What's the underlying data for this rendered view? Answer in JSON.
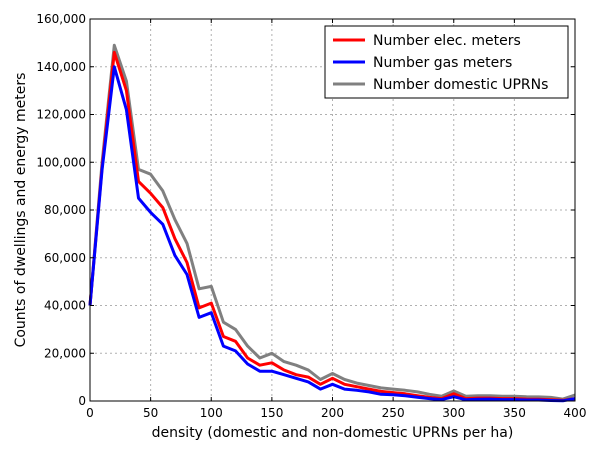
{
  "chart_data": {
    "type": "line",
    "title": "",
    "xlabel": "density (domestic and non-domestic UPRNs per ha)",
    "ylabel": "Counts of dwellings and energy meters",
    "xlim": [
      0,
      400
    ],
    "ylim": [
      0,
      160000
    ],
    "xticks": [
      0,
      50,
      100,
      150,
      200,
      250,
      300,
      350,
      400
    ],
    "yticks": [
      0,
      20000,
      40000,
      60000,
      80000,
      100000,
      120000,
      140000,
      160000
    ],
    "xtick_labels": [
      "0",
      "50",
      "100",
      "150",
      "200",
      "250",
      "300",
      "350",
      "400"
    ],
    "ytick_labels": [
      "0",
      "20,000",
      "40,000",
      "60,000",
      "80,000",
      "100,000",
      "120,000",
      "140,000",
      "160,000"
    ],
    "grid": true,
    "legend_position": "top-right",
    "x": [
      0,
      10,
      20,
      30,
      40,
      50,
      60,
      70,
      80,
      90,
      100,
      110,
      120,
      130,
      140,
      150,
      160,
      170,
      180,
      190,
      200,
      210,
      220,
      230,
      240,
      250,
      260,
      270,
      280,
      290,
      300,
      310,
      320,
      330,
      340,
      350,
      360,
      370,
      380,
      390,
      400
    ],
    "series": [
      {
        "name": "Number elec. meters",
        "color": "#ff0000",
        "values": [
          40000,
          98000,
          146000,
          130000,
          92000,
          87000,
          81000,
          68000,
          58000,
          39000,
          41000,
          27000,
          25000,
          18000,
          15000,
          16000,
          13000,
          11000,
          10000,
          7000,
          9500,
          7000,
          6000,
          5000,
          4000,
          3500,
          3000,
          2200,
          1500,
          1000,
          3000,
          1000,
          1200,
          1200,
          1000,
          1000,
          800,
          700,
          500,
          300,
          1000
        ]
      },
      {
        "name": "Number gas meters",
        "color": "#0000ff",
        "values": [
          40000,
          97000,
          140000,
          122000,
          85000,
          79000,
          74000,
          61000,
          53000,
          35000,
          37000,
          23000,
          21000,
          15500,
          12500,
          12500,
          11000,
          9500,
          8000,
          5000,
          7000,
          5000,
          4500,
          3800,
          2800,
          2600,
          2200,
          1600,
          1000,
          600,
          1800,
          500,
          700,
          800,
          600,
          600,
          400,
          400,
          200,
          100,
          1000
        ]
      },
      {
        "name": "Number domestic UPRNs",
        "color": "#808080",
        "values": [
          40000,
          100000,
          149000,
          134000,
          97000,
          95000,
          88000,
          76000,
          66000,
          47000,
          48000,
          33000,
          30000,
          23000,
          18000,
          20000,
          16500,
          15000,
          13000,
          9000,
          11500,
          9000,
          7500,
          6500,
          5500,
          5000,
          4500,
          3800,
          2800,
          2000,
          4200,
          2000,
          2200,
          2200,
          2000,
          2000,
          1800,
          1700,
          1500,
          800,
          2500
        ]
      }
    ]
  }
}
